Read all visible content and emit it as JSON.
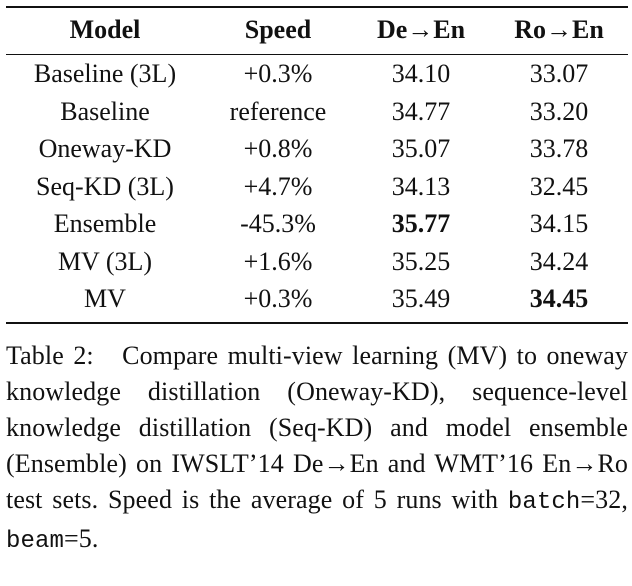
{
  "table": {
    "headers": [
      "Model",
      "Speed",
      "De→En",
      "Ro→En"
    ],
    "rows": [
      {
        "model": "Baseline (3L)",
        "speed": "+0.3%",
        "de_en": "34.10",
        "ro_en": "33.07"
      },
      {
        "model": "Baseline",
        "speed": "reference",
        "de_en": "34.77",
        "ro_en": "33.20"
      },
      {
        "model": "Oneway-KD",
        "speed": "+0.8%",
        "de_en": "35.07",
        "ro_en": "33.78"
      },
      {
        "model": "Seq-KD (3L)",
        "speed": "+4.7%",
        "de_en": "34.13",
        "ro_en": "32.45"
      },
      {
        "model": "Ensemble",
        "speed": "-45.3%",
        "de_en": "35.77",
        "ro_en": "34.15"
      },
      {
        "model": "MV (3L)",
        "speed": "+1.6%",
        "de_en": "35.25",
        "ro_en": "34.24"
      },
      {
        "model": "MV",
        "speed": "+0.3%",
        "de_en": "35.49",
        "ro_en": "34.45"
      }
    ]
  },
  "caption": {
    "label": "Table 2:",
    "text_part1": "Compare multi-view learning (MV) to oneway knowledge distillation (Oneway-KD), sequence-level knowledge distillation (Seq-KD) and model ensemble (Ensemble) on IWSLT’14 De→En and WMT’16 En→Ro test sets. Speed is the average of 5 runs with",
    "code1": "batch",
    "text_part2": "=32,",
    "code2": "beam",
    "text_part3": "=5."
  }
}
